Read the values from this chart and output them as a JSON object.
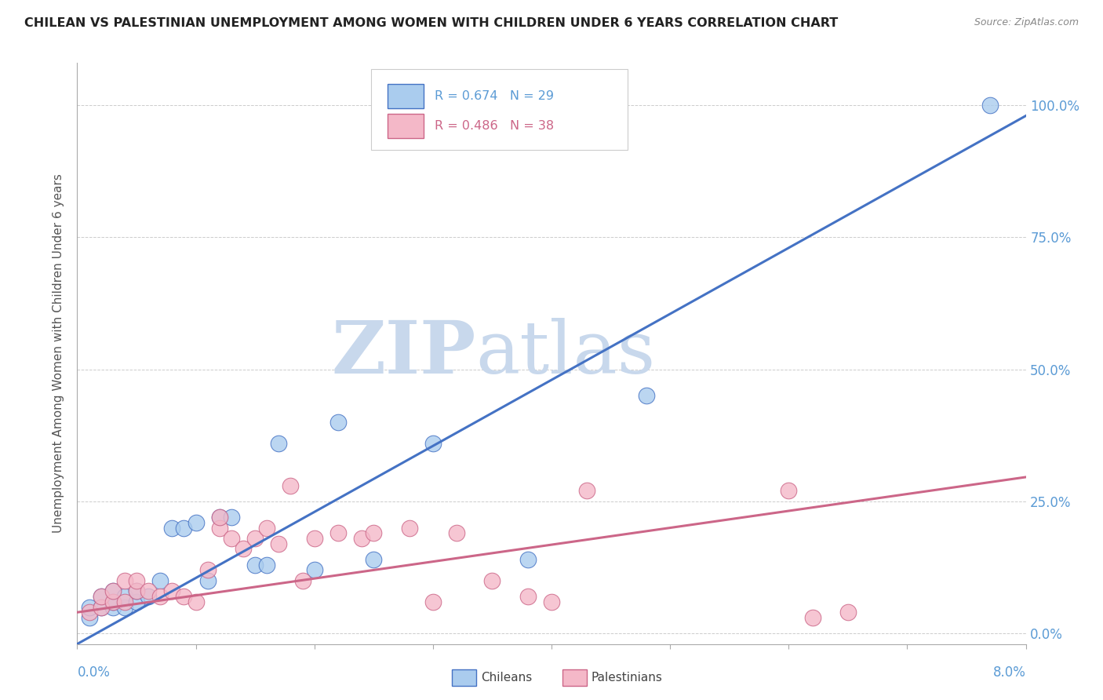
{
  "title": "CHILEAN VS PALESTINIAN UNEMPLOYMENT AMONG WOMEN WITH CHILDREN UNDER 6 YEARS CORRELATION CHART",
  "source": "Source: ZipAtlas.com",
  "ylabel": "Unemployment Among Women with Children Under 6 years",
  "ytick_labels": [
    "0.0%",
    "25.0%",
    "50.0%",
    "75.0%",
    "100.0%"
  ],
  "ytick_values": [
    0.0,
    0.25,
    0.5,
    0.75,
    1.0
  ],
  "xlim": [
    0.0,
    0.08
  ],
  "ylim": [
    -0.02,
    1.08
  ],
  "chilean_R": 0.674,
  "chilean_N": 29,
  "palestinian_R": 0.486,
  "palestinian_N": 38,
  "chilean_color": "#aaccee",
  "chilean_line_color": "#4472c4",
  "palestinian_color": "#f4b8c8",
  "palestinian_line_color": "#cc6688",
  "background_color": "#ffffff",
  "watermark_ZIP": "ZIP",
  "watermark_atlas": "atlas",
  "grid_color": "#cccccc",
  "title_color": "#222222",
  "axis_label_color": "#5b9bd5",
  "chilean_line_slope": 12.5,
  "chilean_line_intercept": -0.02,
  "palestinian_line_slope": 3.2,
  "palestinian_line_intercept": 0.04,
  "chilean_points_x": [
    0.001,
    0.001,
    0.002,
    0.002,
    0.003,
    0.003,
    0.003,
    0.004,
    0.004,
    0.005,
    0.005,
    0.006,
    0.007,
    0.008,
    0.009,
    0.01,
    0.011,
    0.012,
    0.013,
    0.015,
    0.016,
    0.017,
    0.02,
    0.022,
    0.025,
    0.03,
    0.038,
    0.048,
    0.077
  ],
  "chilean_points_y": [
    0.03,
    0.05,
    0.05,
    0.07,
    0.05,
    0.06,
    0.08,
    0.05,
    0.07,
    0.06,
    0.08,
    0.07,
    0.1,
    0.2,
    0.2,
    0.21,
    0.1,
    0.22,
    0.22,
    0.13,
    0.13,
    0.36,
    0.12,
    0.4,
    0.14,
    0.36,
    0.14,
    0.45,
    1.0
  ],
  "palestinian_points_x": [
    0.001,
    0.002,
    0.002,
    0.003,
    0.003,
    0.004,
    0.004,
    0.005,
    0.005,
    0.006,
    0.007,
    0.008,
    0.009,
    0.01,
    0.011,
    0.012,
    0.012,
    0.013,
    0.014,
    0.015,
    0.016,
    0.017,
    0.018,
    0.019,
    0.02,
    0.022,
    0.024,
    0.025,
    0.028,
    0.03,
    0.032,
    0.035,
    0.038,
    0.04,
    0.043,
    0.06,
    0.062,
    0.065
  ],
  "palestinian_points_y": [
    0.04,
    0.05,
    0.07,
    0.06,
    0.08,
    0.06,
    0.1,
    0.08,
    0.1,
    0.08,
    0.07,
    0.08,
    0.07,
    0.06,
    0.12,
    0.2,
    0.22,
    0.18,
    0.16,
    0.18,
    0.2,
    0.17,
    0.28,
    0.1,
    0.18,
    0.19,
    0.18,
    0.19,
    0.2,
    0.06,
    0.19,
    0.1,
    0.07,
    0.06,
    0.27,
    0.27,
    0.03,
    0.04
  ]
}
